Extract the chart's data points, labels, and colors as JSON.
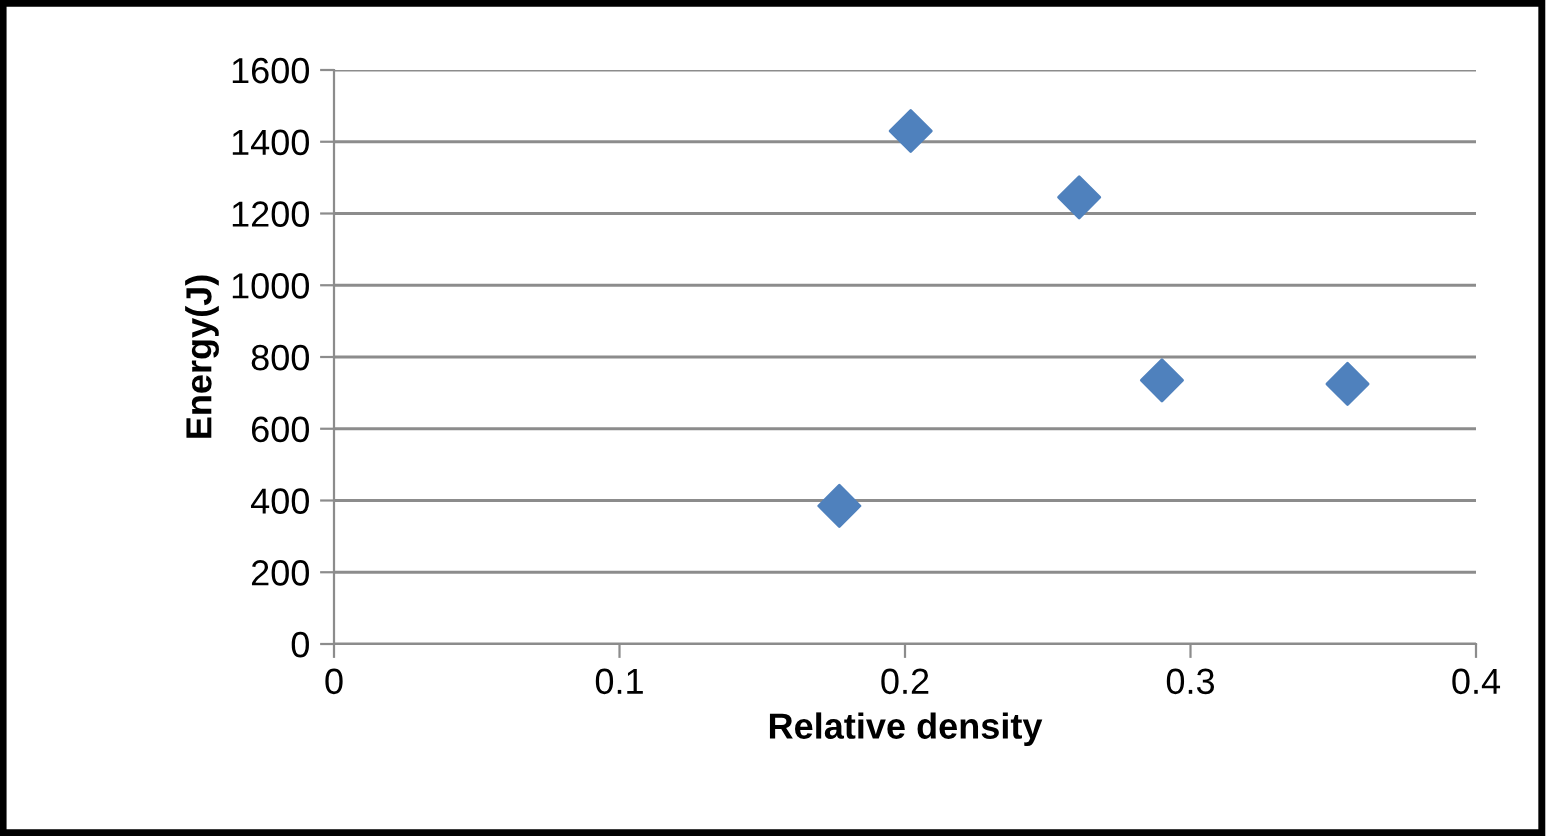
{
  "chart_data": {
    "type": "scatter",
    "xlabel": "Relative density",
    "ylabel": "Energy(J)",
    "x": [
      0.177,
      0.202,
      0.261,
      0.29,
      0.355
    ],
    "series": [
      {
        "color": "#4f81bd",
        "values": [
          385,
          1430,
          1245,
          735,
          725
        ]
      }
    ],
    "marker": "diamond",
    "xlim": [
      0,
      0.4
    ],
    "xticks": [
      0,
      0.1,
      0.2,
      0.3,
      0.4
    ],
    "ylim": [
      0,
      1600
    ],
    "yticks": [
      0,
      200,
      400,
      600,
      800,
      1000,
      1200,
      1400,
      1600
    ],
    "grid": "y",
    "legend": false
  }
}
